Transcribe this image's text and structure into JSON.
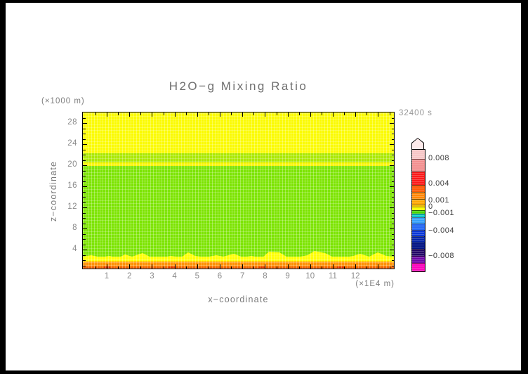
{
  "title": "H2O−g Mixing Ratio",
  "time_label": "32400 s",
  "axes": {
    "x": {
      "label": "x−coordinate",
      "unit": "(×1E4 m)",
      "ticks": [
        {
          "label": "1",
          "value": 1
        },
        {
          "label": "2",
          "value": 2
        },
        {
          "label": "3",
          "value": 3
        },
        {
          "label": "4",
          "value": 4
        },
        {
          "label": "5",
          "value": 5
        },
        {
          "label": "6",
          "value": 6
        },
        {
          "label": "7",
          "value": 7
        },
        {
          "label": "8",
          "value": 8
        },
        {
          "label": "9",
          "value": 9
        },
        {
          "label": "10",
          "value": 10
        },
        {
          "label": "11",
          "value": 11
        },
        {
          "label": "12",
          "value": 12
        }
      ]
    },
    "y": {
      "label": "z−coordinate",
      "unit": "(×1000 m)",
      "ticks": [
        {
          "label": "28",
          "value": 28
        },
        {
          "label": "24",
          "value": 24
        },
        {
          "label": "20",
          "value": 20
        },
        {
          "label": "16",
          "value": 16
        },
        {
          "label": "12",
          "value": 12
        },
        {
          "label": "8",
          "value": 8
        },
        {
          "label": "4",
          "value": 4
        }
      ]
    }
  },
  "colorbar": {
    "segments": [
      {
        "color": "#f6c6c6",
        "height": 13
      },
      {
        "color": "#f29090",
        "height": 18
      },
      {
        "color": "#fb1a1a",
        "height": 19
      },
      {
        "color": "#ff5a06",
        "height": 10
      },
      {
        "color": "#ff8706",
        "height": 10
      },
      {
        "color": "#ffa702",
        "height": 8
      },
      {
        "color": "#fdc800",
        "height": 3
      },
      {
        "color": "#fdfd00",
        "height": 5
      },
      {
        "color": "#46d800",
        "height": 5
      },
      {
        "color": "#00c8c8",
        "height": 5
      },
      {
        "color": "#35a0fb",
        "height": 9
      },
      {
        "color": "#2468f5",
        "height": 9
      },
      {
        "color": "#0a37d8",
        "height": 9
      },
      {
        "color": "#0524a8",
        "height": 9
      },
      {
        "color": "#021484",
        "height": 9
      },
      {
        "color": "#230566",
        "height": 10
      },
      {
        "color": "#6e06a8",
        "height": 10
      },
      {
        "color": "#fb04bc",
        "height": 12
      }
    ],
    "labels": [
      {
        "text": "0.008",
        "y_offset": 13
      },
      {
        "text": "0.004",
        "y_offset": 49
      },
      {
        "text": "0.001",
        "y_offset": 73
      },
      {
        "text": "0",
        "y_offset": 82
      },
      {
        "text": "−0.001",
        "y_offset": 91
      },
      {
        "text": "−0.004",
        "y_offset": 116
      },
      {
        "text": "−0.008",
        "y_offset": 152
      }
    ]
  },
  "chart_data": {
    "type": "heatmap",
    "title": "H2O−g Mixing Ratio",
    "xlabel": "x−coordinate",
    "ylabel": "z−coordinate",
    "x_unit": "(×1E4 m)",
    "y_unit": "(×1000 m)",
    "time": "32400 s",
    "x_range": [
      0,
      13.7
    ],
    "z_range": [
      0.4,
      30
    ],
    "x_major_ticks": [
      1,
      2,
      3,
      4,
      5,
      6,
      7,
      8,
      9,
      10,
      11,
      12
    ],
    "z_major_ticks": [
      4,
      8,
      12,
      16,
      20,
      24,
      28
    ],
    "colorbar_labeled_levels": [
      0.008,
      0.004,
      0.001,
      0,
      -0.001,
      -0.004,
      -0.008
    ],
    "field_bands": [
      {
        "z_from": 22.3,
        "z_to": 30.0,
        "approx_value": "0 to +0.001 (yellow)",
        "color": "#fbfb00"
      },
      {
        "z_from": 20.6,
        "z_to": 22.3,
        "approx_value": "near 0 (yellow-green)",
        "color": "#abe800"
      },
      {
        "z_from": 19.9,
        "z_to": 20.6,
        "approx_value": "0 to +0.001 (yellow stripe)",
        "color": "#f8f400"
      },
      {
        "z_from": 2.7,
        "z_to": 19.9,
        "approx_value": "−0.0005 to 0 (green)",
        "color": "#7ce400"
      },
      {
        "z_from": 1.15,
        "z_to": 2.7,
        "approx_value": "0 to +0.001 (wavy yellow surface layer)",
        "color": "#ffff00"
      },
      {
        "z_from": 0.55,
        "z_to": 1.15,
        "approx_value": "+0.001 to +0.002 (orange)",
        "color": "#ff9100"
      },
      {
        "z_from": 0.4,
        "z_to": 0.55,
        "approx_value": "+0.002 to +0.003 (dark orange at surface)",
        "color": "#f26000"
      }
    ]
  }
}
